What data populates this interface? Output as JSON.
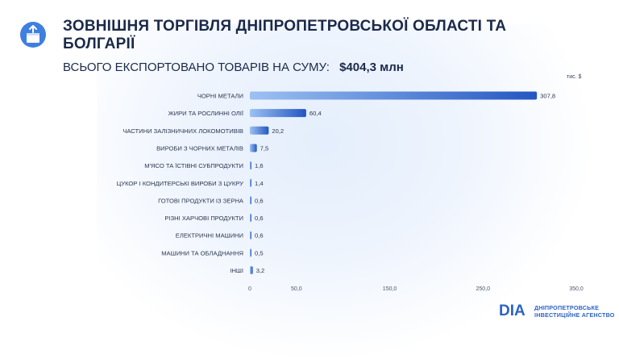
{
  "header": {
    "title": "ЗОВНІШНЯ ТОРГІВЛЯ ДНІПРОПЕТРОВСЬКОЇ ОБЛАСТІ ТА БОЛГАРІЇ",
    "subtitle_label": "ВСЬОГО ЕКСПОРТОВАНО ТОВАРІВ НА СУМУ:",
    "subtitle_amount": "$404,3 млн",
    "icon": "export-box-icon"
  },
  "chart_data": {
    "type": "bar",
    "orientation": "horizontal",
    "unit": "тис. $",
    "categories": [
      "ЧОРНІ МЕТАЛИ",
      "ЖИРИ ТА РОСЛИННІ ОЛІЇ",
      "ЧАСТИНИ ЗАЛІЗНИЧНИХ ЛОКОМОТИВІВ",
      "ВИРОБИ З ЧОРНИХ МЕТАЛІВ",
      "М'ЯСО ТА ЇСТІВНІ СУБПРОДУКТИ",
      "ЦУКОР І КОНДИТЕРСЬКІ ВИРОБИ З ЦУКРУ",
      "ГОТОВІ ПРОДУКТИ ІЗ ЗЕРНА",
      "РІЗНІ ХАРЧОВІ ПРОДУКТИ",
      "ЕЛЕКТРИЧНІ МАШИНИ",
      "МАШИНИ ТА ОБЛАДНАННЯ",
      "ІНШІ"
    ],
    "values": [
      307.8,
      60.4,
      20.2,
      7.5,
      1.6,
      1.4,
      0.6,
      0.6,
      0.6,
      0.5,
      3.2
    ],
    "value_labels": [
      "307,8",
      "60,4",
      "20,2",
      "7,5",
      "1,6",
      "1,4",
      "0,6",
      "0,6",
      "0,6",
      "0,5",
      "3,2"
    ],
    "xticks": [
      0,
      50,
      150,
      250,
      350
    ],
    "xtick_labels": [
      "0",
      "50,0",
      "150,0",
      "250,0",
      "350,0"
    ],
    "xlim": [
      0,
      350
    ],
    "grid": false,
    "bar_colors": {
      "start": "#9cc1f3",
      "end": "#2456c2"
    }
  },
  "footer": {
    "brand_mark": "DIA",
    "brand_line1": "ДНІПРОПЕТРОВСЬКЕ",
    "brand_line2": "ІНВЕСТИЦІЙНЕ АГЕНСТВО"
  }
}
